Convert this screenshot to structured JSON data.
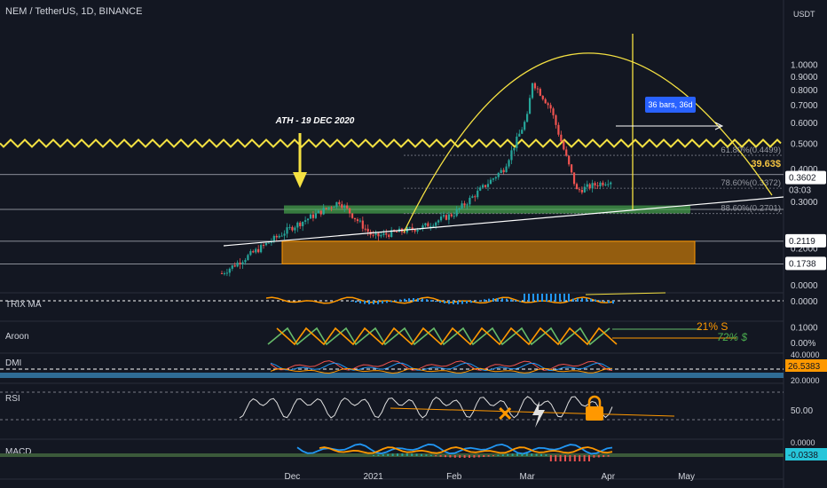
{
  "header": {
    "symbol_line": "NEM / TetherUS, 1D, BINANCE"
  },
  "price_axis": {
    "currency": "USDT",
    "ticks": [
      "1.0000",
      "0.9000",
      "0.8000",
      "0.7000",
      "0.6000",
      "0.5000",
      "0.4000",
      "0.3000",
      "0.2000",
      "0.1000",
      "0.0000"
    ],
    "tick_values": [
      1.0,
      0.9,
      0.8,
      0.7,
      0.6,
      0.5,
      0.4,
      0.3,
      0.2,
      0.1,
      0.0
    ],
    "labels": {
      "current_price": "0.3602",
      "countdown": "03:03",
      "level_1": "0.2119",
      "level_2": "0.1738"
    },
    "scale": "log"
  },
  "time_axis": {
    "ticks": [
      "Dec",
      "2021",
      "Feb",
      "Mar",
      "Apr",
      "May"
    ]
  },
  "annotations": {
    "ath": "ATH - 19 DEC 2020",
    "range_label": "36 bars, 36d",
    "fib_618": "61.80%(0.4499)",
    "fib_786": "78.60%(0.3372)",
    "fib_886": "88.60%(0.2701)",
    "change_pct": "39.63$"
  },
  "indicators": {
    "trix": {
      "label": "TRIX MA",
      "axis": "0.0000",
      "axis_top": "0.0000"
    },
    "aroon": {
      "label": "Aroon",
      "axis": "0.00%",
      "note_up": "21% S",
      "note_down": "72% $"
    },
    "dmi": {
      "label": "DMI",
      "value": "26.5383",
      "axis_top": "40.0000",
      "axis_bottom": "20.0000"
    },
    "rsi": {
      "label": "RSI",
      "axis": "50.00"
    },
    "macd": {
      "label": "MACD",
      "value": "-0.0338",
      "axis_top": "0.0000"
    }
  },
  "colors": {
    "background": "#131722",
    "up": "#26a69a",
    "down": "#ef5350",
    "fib": "#f5e142",
    "support_zone": "#4caf50",
    "demand_zone": "#ff9800",
    "text": "#d1d4dc"
  },
  "chart_data": {
    "type": "candlestick",
    "title": "NEM / TetherUS, 1D, BINANCE",
    "x_range": [
      "2020-11-04",
      "2021-05-10"
    ],
    "ylim": [
      0.1,
      1.0
    ],
    "y_scale": "log",
    "anchor_points": [
      {
        "date": "2020-11-04",
        "close": 0.16
      },
      {
        "date": "2020-12-01",
        "close": 0.24
      },
      {
        "date": "2020-12-19",
        "close": 0.3
      },
      {
        "date": "2021-01-01",
        "close": 0.22
      },
      {
        "date": "2021-01-20",
        "close": 0.24
      },
      {
        "date": "2021-02-01",
        "close": 0.27
      },
      {
        "date": "2021-02-20",
        "close": 0.4
      },
      {
        "date": "2021-03-01",
        "close": 0.63
      },
      {
        "date": "2021-03-03",
        "close": 0.86
      },
      {
        "date": "2021-03-10",
        "close": 0.68
      },
      {
        "date": "2021-03-20",
        "close": 0.33
      },
      {
        "date": "2021-04-01",
        "close": 0.36
      },
      {
        "date": "2021-04-02",
        "close": 0.3602
      }
    ],
    "horizontal_levels": [
      0.2119,
      0.1738,
      0.4499,
      0.3372,
      0.2701
    ],
    "zones": [
      {
        "name": "support",
        "from": 0.27,
        "to": 0.29
      },
      {
        "name": "demand",
        "from": 0.1738,
        "to": 0.2119
      }
    ]
  }
}
